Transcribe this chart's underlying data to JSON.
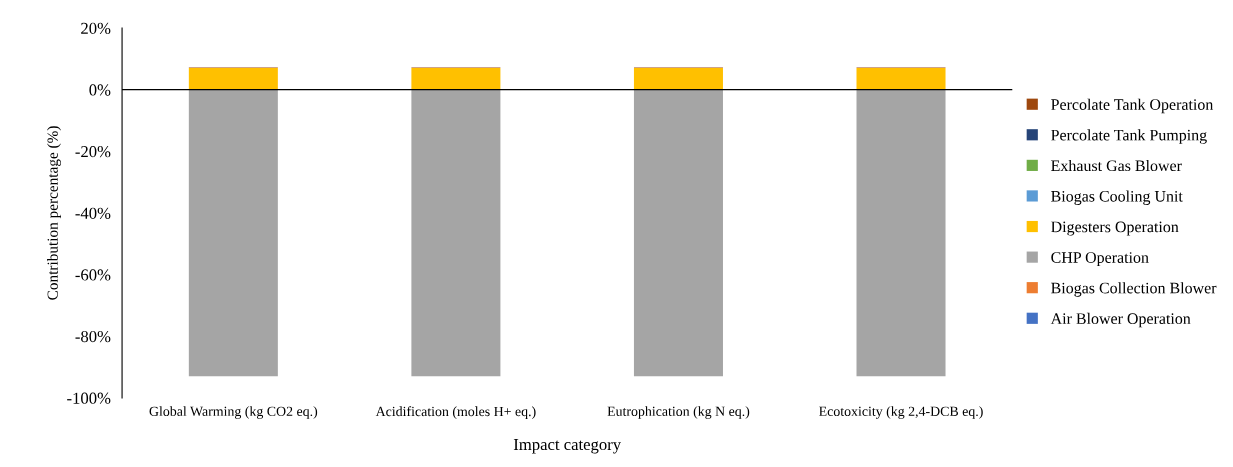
{
  "chart_data": {
    "type": "bar",
    "stacked": true,
    "xlabel": "Impact category",
    "ylabel": "Contribution percentage (%)",
    "categories": [
      "Global Warming (kg CO2 eq.)",
      "Acidification (moles H+ eq.)",
      "Eutrophication (kg N eq.)",
      "Ecotoxicity (kg 2,4-DCB eq.)"
    ],
    "series": [
      {
        "name": "Air Blower Operation",
        "color": "#4472c4",
        "values": [
          0,
          0,
          0,
          0
        ]
      },
      {
        "name": "Biogas Collection Blower",
        "color": "#ed7d31",
        "values": [
          0,
          0,
          0,
          0
        ]
      },
      {
        "name": "CHP Operation",
        "color": "#a5a5a5",
        "values": [
          -93,
          -93,
          -93,
          -93
        ]
      },
      {
        "name": "Digesters Operation",
        "color": "#ffc000",
        "values": [
          7,
          7,
          7,
          7
        ]
      },
      {
        "name": "Biogas Cooling Unit",
        "color": "#5b9bd5",
        "values": [
          0,
          0,
          0,
          0
        ]
      },
      {
        "name": "Exhaust Gas Blower",
        "color": "#70ad47",
        "values": [
          0,
          0,
          0,
          0
        ]
      },
      {
        "name": "Percolate Tank Pumping",
        "color": "#264478",
        "values": [
          0,
          0,
          0,
          0
        ]
      },
      {
        "name": "Percolate Tank Operation",
        "color": "#9e480e",
        "values": [
          0.2,
          0.2,
          0.2,
          0.2
        ]
      }
    ],
    "ylim": [
      -100,
      20
    ],
    "yticks": [
      {
        "value": -100,
        "label": "-100%"
      },
      {
        "value": -80,
        "label": "-80%"
      },
      {
        "value": -60,
        "label": "-60%"
      },
      {
        "value": -40,
        "label": "-40%"
      },
      {
        "value": -20,
        "label": "-20%"
      },
      {
        "value": 0,
        "label": "0%"
      },
      {
        "value": 20,
        "label": "20%"
      }
    ],
    "ref_lines": [
      {
        "axis": "y",
        "value": 0,
        "color": "#000000"
      }
    ],
    "grid": false,
    "legend": "right"
  }
}
